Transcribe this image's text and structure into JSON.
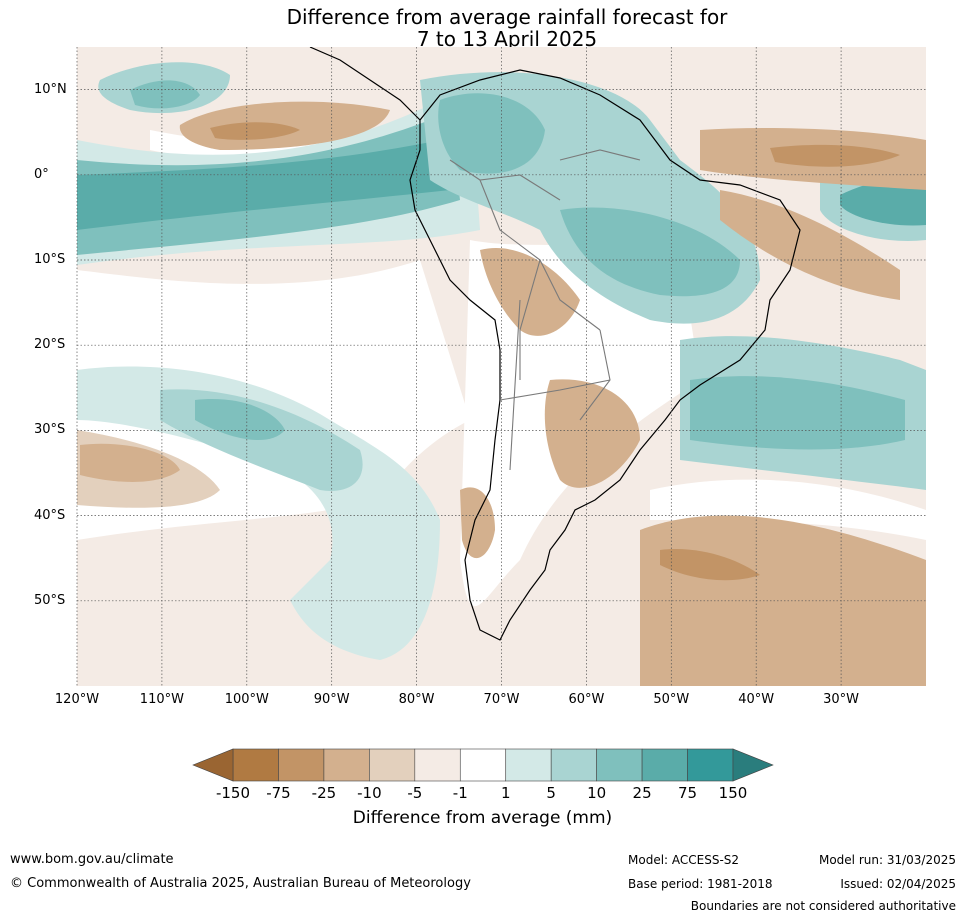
{
  "title_line1": "Difference from average rainfall forecast for",
  "title_line2": "7 to 13 April 2025",
  "map": {
    "lat_labels": [
      {
        "text": "10°N",
        "lat": 10
      },
      {
        "text": "0°",
        "lat": 0
      },
      {
        "text": "10°S",
        "lat": -10
      },
      {
        "text": "20°S",
        "lat": -20
      },
      {
        "text": "30°S",
        "lat": -30
      },
      {
        "text": "40°S",
        "lat": -40
      },
      {
        "text": "50°S",
        "lat": -50
      }
    ],
    "lon_labels": [
      {
        "text": "120°W",
        "lon": -120
      },
      {
        "text": "110°W",
        "lon": -110
      },
      {
        "text": "100°W",
        "lon": -100
      },
      {
        "text": "90°W",
        "lon": -90
      },
      {
        "text": "80°W",
        "lon": -80
      },
      {
        "text": "70°W",
        "lon": -70
      },
      {
        "text": "60°W",
        "lon": -60
      },
      {
        "text": "50°W",
        "lon": -50
      },
      {
        "text": "40°W",
        "lon": -40
      },
      {
        "text": "30°W",
        "lon": -30
      }
    ],
    "lon_range": [
      -120,
      -20
    ],
    "lat_range": [
      -60,
      15
    ],
    "gridlines": true
  },
  "colorbar": {
    "title": "Difference from average (mm)",
    "ticks": [
      "-150",
      "-75",
      "-25",
      "-10",
      "-5",
      "-1",
      "1",
      "5",
      "10",
      "25",
      "75",
      "150"
    ],
    "colors": [
      "#b07a42",
      "#c29466",
      "#d3b08e",
      "#e3d0bd",
      "#f4ebe5",
      "#ffffff",
      "#d3e9e7",
      "#a9d4d2",
      "#7fc0bd",
      "#5aaca9",
      "#33999a"
    ],
    "extend_low_color": "#9a6532",
    "extend_high_color": "#2a7d7d"
  },
  "footer": {
    "url": "www.bom.gov.au/climate",
    "copyright": "© Commonwealth of Australia 2025, Australian Bureau of Meteorology",
    "model": "Model: ACCESS-S2",
    "base_period": "Base period: 1981-2018",
    "model_run": "Model run: 31/03/2025",
    "issued": "Issued: 02/04/2025",
    "boundaries_note": "Boundaries are not considered authoritative"
  }
}
